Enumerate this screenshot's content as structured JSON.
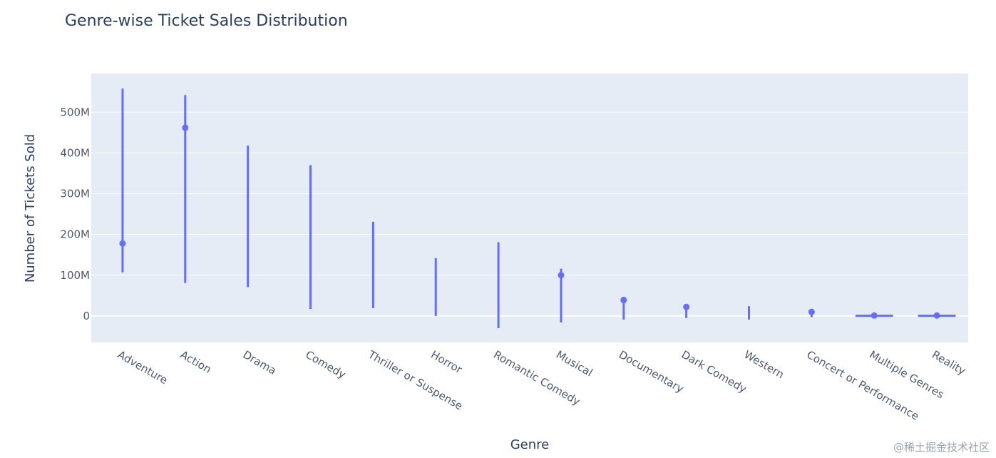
{
  "chart_data": {
    "type": "scatter",
    "title": "Genre-wise Ticket Sales Distribution",
    "xlabel": "Genre",
    "ylabel": "Number of Tickets Sold",
    "ylim": [
      -65000000,
      595000000
    ],
    "yticks": [
      0,
      100000000,
      200000000,
      300000000,
      400000000,
      500000000
    ],
    "ytick_labels": [
      "0",
      "100M",
      "200M",
      "300M",
      "400M",
      "500M"
    ],
    "grid": true,
    "colors": {
      "marker": "#636efa",
      "plot_bg": "#e5ecf6",
      "grid": "#ffffff"
    },
    "categories": [
      "Adventure",
      "Action",
      "Drama",
      "Comedy",
      "Thriller or Suspense",
      "Horror",
      "Romantic Comedy",
      "Musical",
      "Documentary",
      "Dark Comedy",
      "Western",
      "Concert or Performance",
      "Multiple Genres",
      "Reality"
    ],
    "values": [
      178000000,
      462000000,
      null,
      null,
      null,
      null,
      null,
      100000000,
      39000000,
      22000000,
      null,
      10000000,
      1000000,
      1000000
    ],
    "error_low": [
      107000000,
      81000000,
      71000000,
      17000000,
      19000000,
      0,
      -30000000,
      -16000000,
      -9000000,
      -5000000,
      -9000000,
      -3000000,
      -1000000,
      0
    ],
    "error_high": [
      558000000,
      542000000,
      418000000,
      370000000,
      231000000,
      142000000,
      181000000,
      116000000,
      47000000,
      27000000,
      24000000,
      15000000,
      2000000,
      1000000
    ]
  },
  "watermark": "@稀土掘金技术社区"
}
